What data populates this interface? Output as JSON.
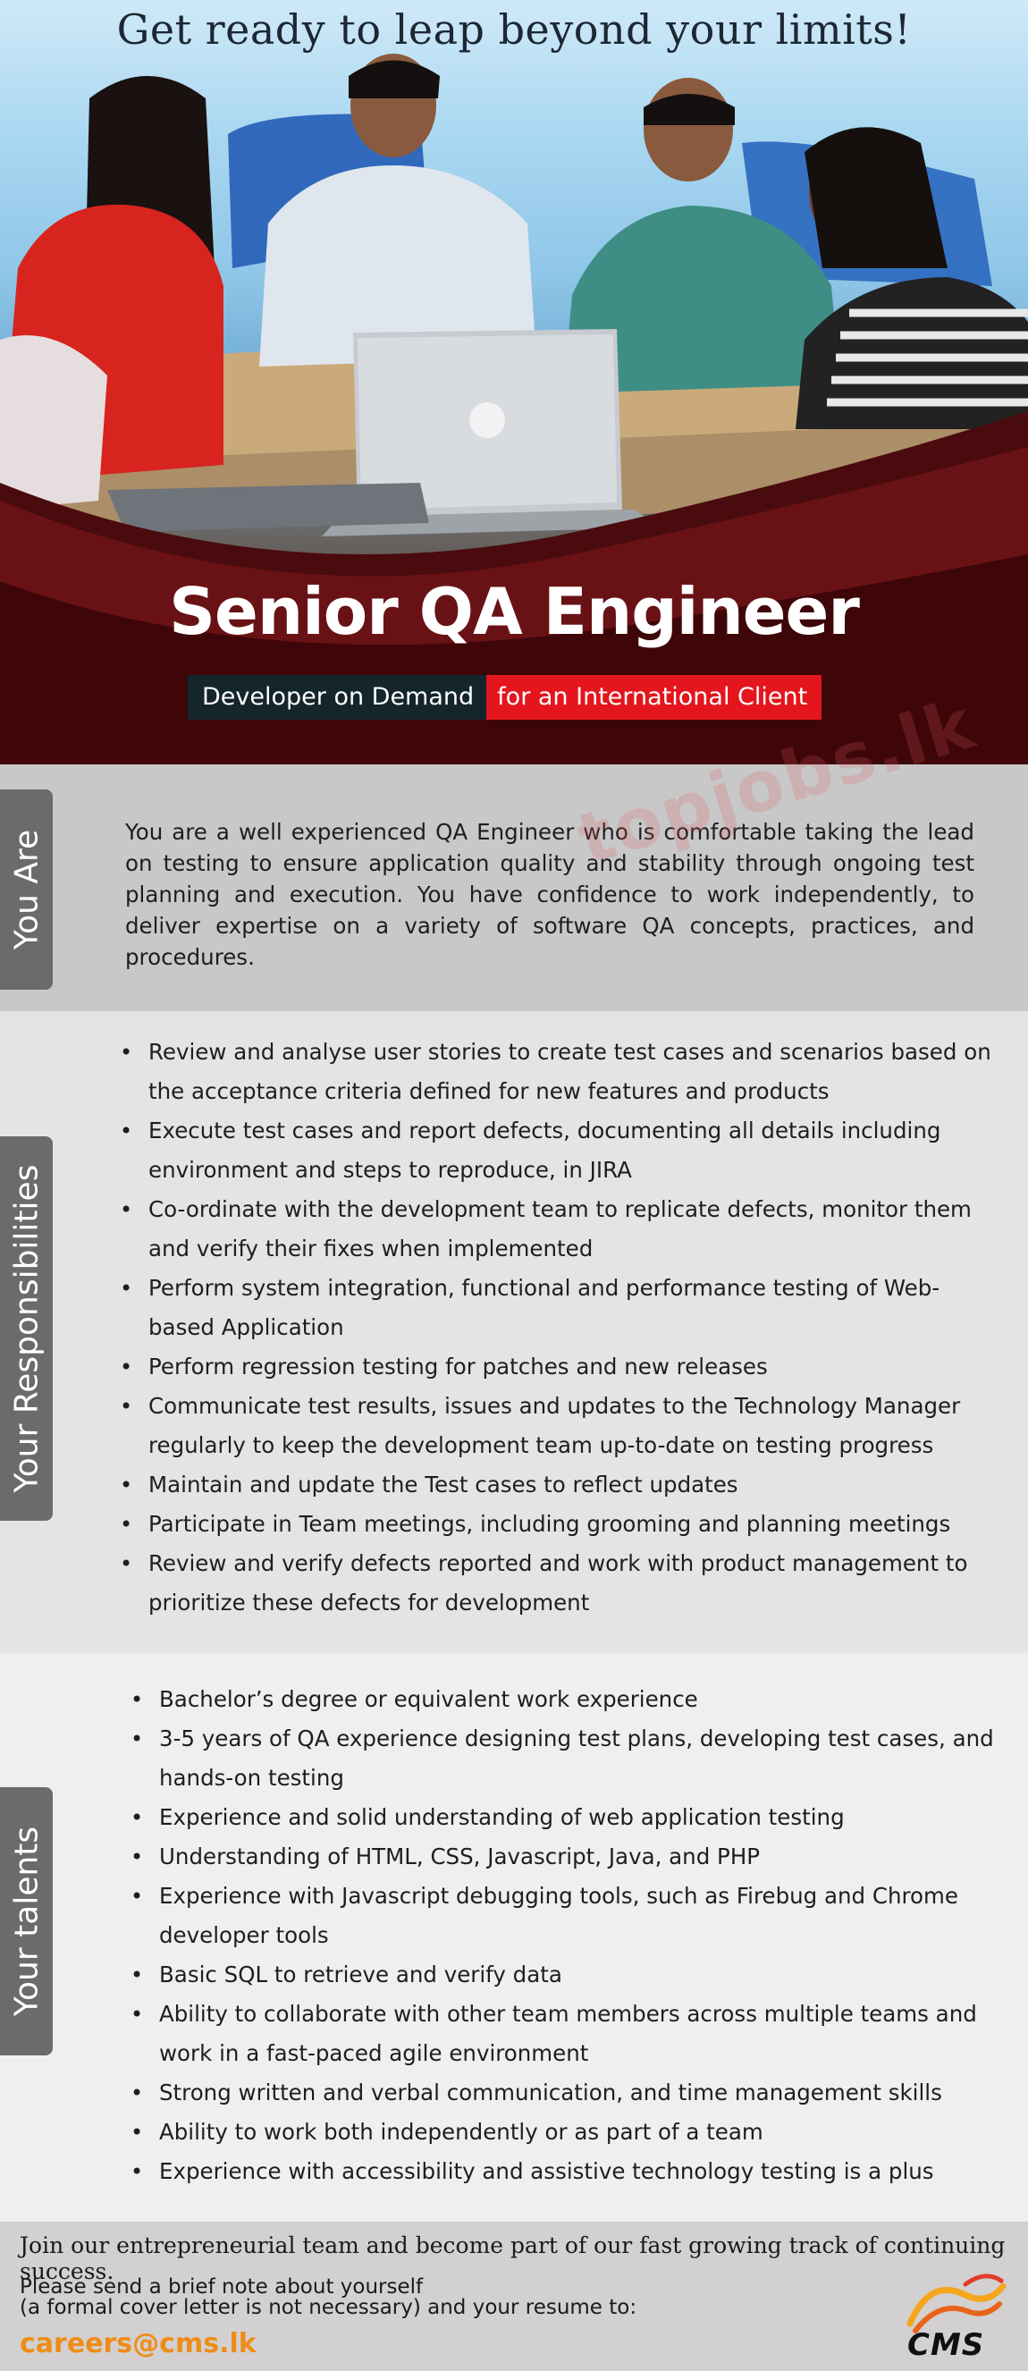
{
  "hero": {
    "tagline": "Get ready to leap beyond your limits!",
    "job_title": "Senior QA Engineer",
    "tag_primary": "Developer on Demand",
    "tag_secondary": "for an International Client"
  },
  "watermark": "topjobs.lk",
  "sections": {
    "you_are": {
      "label": "You Are",
      "text": "You are a well experienced QA Engineer who is comfortable taking the lead on testing to ensure application quality and stability through ongoing test planning and execution. You have confidence to work independently, to deliver expertise on a variety of software QA concepts, practices, and procedures."
    },
    "responsibilities": {
      "label": "Your Responsibilities",
      "items": [
        "Review and analyse user stories to create test cases and scenarios based on the acceptance criteria defined for new features and products",
        "Execute test cases and report defects, documenting all details including environment and steps to reproduce, in JIRA",
        "Co-ordinate with the development team to replicate defects, monitor them and verify their fixes when implemented",
        "Perform system integration, functional and performance testing of Web-based Application",
        "Perform regression testing for patches and new releases",
        "Communicate test results, issues and updates to the Technology Manager regularly to keep the development team up-to-date on testing progress",
        "Maintain and update the Test cases to reflect updates",
        "Participate in Team meetings, including grooming and planning meetings",
        "Review and verify defects reported and work with product management to prioritize these defects for development"
      ]
    },
    "talents": {
      "label": "Your talents",
      "items": [
        "Bachelor’s degree or equivalent work experience",
        "3-5 years of QA experience designing test plans, developing test cases, and hands-on testing",
        "Experience and solid understanding of web application testing",
        "Understanding of HTML, CSS, Javascript, Java, and PHP",
        "Experience with Javascript debugging tools, such as Firebug and Chrome developer tools",
        "Basic SQL to retrieve and verify data",
        "Ability to collaborate with other team members across multiple teams and work in a fast-paced agile environment",
        "Strong written and verbal communication, and time management skills",
        "Ability to work both independently or as part of a team",
        "Experience with accessibility and assistive technology testing is a plus"
      ]
    }
  },
  "footer": {
    "headline": "Join our entrepreneurial team and become part of our fast growing track of continuing success.",
    "line2": "Please send a brief note about yourself",
    "line3": "(a formal cover letter is not necessary)  and your resume to:",
    "email": "careers@cms.lk",
    "logo_text": "CMS"
  },
  "colors": {
    "accent_red": "#e4151c",
    "dark_tag": "#14252c",
    "email_orange": "#ef8c17",
    "side_tab_gray": "#6b6b6b"
  }
}
